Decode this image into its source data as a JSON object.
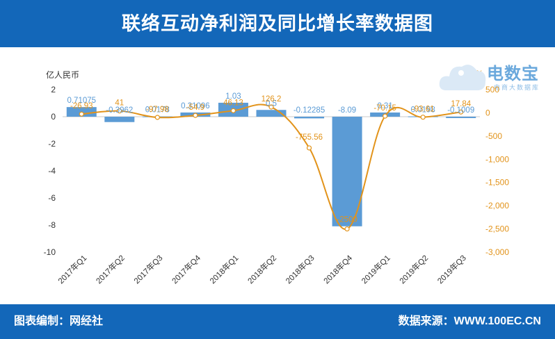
{
  "header": {
    "title": "联络互动净利润及同比增长率数据图"
  },
  "footer": {
    "left": "图表编制：网经社",
    "right": "数据来源：WWW.100EC.CN"
  },
  "watermark": {
    "brand": "电数宝",
    "sub": "电商大数据库",
    "logo": "edt"
  },
  "colors": {
    "bar": "#5b9bd5",
    "line": "#e2931a",
    "header": "#1367b9"
  },
  "chart_data": {
    "type": "bar",
    "categories": [
      "2017年Q1",
      "2017年Q2",
      "2017年Q3",
      "2017年Q4",
      "2018年Q1",
      "2018年Q2",
      "2018年Q3",
      "2018年Q4",
      "2019年Q1",
      "2019年Q2",
      "2019年Q3"
    ],
    "y_unit_label": "亿人民币",
    "y2_unit_label": "%",
    "ylim": [
      -10,
      2
    ],
    "y_ticks": [
      2,
      0,
      -2,
      -4,
      -6,
      -8,
      -10
    ],
    "y2lim": [
      -3000,
      500
    ],
    "y2_ticks": [
      "500",
      "0",
      "-500",
      "-1,000",
      "-1,500",
      "-2,000",
      "-2,500",
      "-3,000"
    ],
    "y2_tick_values": [
      500,
      0,
      -500,
      -1000,
      -1500,
      -2000,
      -2500,
      -3000
    ],
    "series": [
      {
        "type": "bar",
        "values": [
          0.71075,
          -0.3962,
          0.0178,
          0.31096,
          1.03,
          0.5,
          -0.12285,
          -8.09,
          0.31,
          0.0198,
          -0.1009
        ],
        "labels": [
          "0.71075",
          "-0.3962",
          "0.0178",
          "0.31096",
          "1.03",
          "0.5",
          "-0.12285",
          "-8.09",
          "0.31",
          "0.0198",
          "-0.1009"
        ]
      },
      {
        "type": "line",
        "axis": "right",
        "values": [
          -26.93,
          41,
          -97.98,
          -54.9,
          46.13,
          126.2,
          -755.56,
          -2500,
          -70.15,
          -93.61,
          17.84
        ],
        "labels": [
          "-26.93",
          "41",
          "-97.98",
          "-54.9",
          "46.13",
          "126.2",
          "-755.56",
          "-2500",
          "-70.15",
          "-93.61",
          "17.84"
        ]
      }
    ]
  }
}
